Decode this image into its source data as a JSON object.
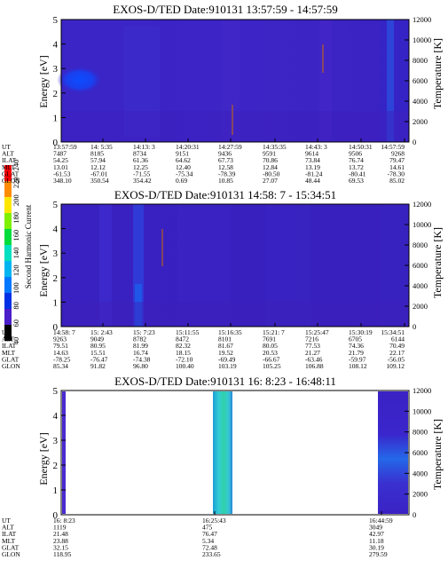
{
  "chart_data": [
    {
      "type": "heatmap",
      "title": "EXOS-D/TED   Date:910131  13:57:59 - 14:57:59",
      "ylabel": "Energy [eV]",
      "ylabel_right": "Temperature [K]",
      "ylim": [
        0,
        5
      ],
      "yticks": [
        "0",
        "1",
        "2",
        "3",
        "4",
        "5"
      ],
      "ylim_right": [
        0,
        12000
      ],
      "yticks_right": [
        "0",
        "2000",
        "4000",
        "6000",
        "8000",
        "10000",
        "12000"
      ],
      "ephemeris_labels": [
        "UT",
        "ALT",
        "ILAT",
        "MLT",
        "GLAT",
        "GLON"
      ],
      "ephemeris": [
        [
          "13:57:59",
          "7487",
          "54.25",
          "13.01",
          "-61.53",
          "348.10"
        ],
        [
          "14: 5:35",
          "8185",
          "57.94",
          "12.12",
          "-67.01",
          "350.54"
        ],
        [
          "14:13: 3",
          "8734",
          "61.36",
          "12.25",
          "-71.55",
          "354.42"
        ],
        [
          "14:20:31",
          "9151",
          "64.62",
          "12.40",
          "-75.34",
          "0.69"
        ],
        [
          "14:27:59",
          "9436",
          "67.73",
          "12.58",
          "-78.39",
          "10.85"
        ],
        [
          "14:35:35",
          "9591",
          "70.86",
          "12.84",
          "-80.50",
          "27.07"
        ],
        [
          "14:43: 3",
          "9614",
          "73.84",
          "13.19",
          "-81.24",
          "48.44"
        ],
        [
          "14:50:31",
          "9506",
          "76.74",
          "13.72",
          "-80.41",
          "69.53"
        ],
        [
          "14:57:59",
          "9268",
          "79.47",
          "14.61",
          "-78.30",
          "85.02"
        ]
      ]
    },
    {
      "type": "heatmap",
      "title": "EXOS-D/TED   Date:910131  14:58: 7 - 15:34:51",
      "ylabel": "Energy [eV]",
      "ylabel_right": "Temperature [K]",
      "ylim": [
        0,
        5
      ],
      "yticks": [
        "0",
        "1",
        "2",
        "3",
        "4",
        "5"
      ],
      "ylim_right": [
        0,
        12000
      ],
      "yticks_right": [
        "0",
        "2000",
        "4000",
        "6000",
        "8000",
        "10000",
        "12000"
      ],
      "colorbar": {
        "label": "Second Harmonic Current",
        "ticks": [
          "40",
          "60",
          "80",
          "100",
          "120",
          "140",
          "160",
          "180",
          "200",
          "220",
          "240"
        ]
      },
      "ephemeris_labels": [
        "UT",
        "ALT",
        "ILAT",
        "MLT",
        "GLAT",
        "GLON"
      ],
      "ephemeris": [
        [
          "14:58: 7",
          "9263",
          "79.51",
          "14.63",
          "-78.25",
          "85.34"
        ],
        [
          "15: 2:43",
          "9049",
          "80.95",
          "15.51",
          "-76.47",
          "91.82"
        ],
        [
          "15: 7:23",
          "8782",
          "81.99",
          "16.74",
          "-74.38",
          "96.80"
        ],
        [
          "15:11:55",
          "8472",
          "82.32",
          "18.15",
          "-72.10",
          "100.40"
        ],
        [
          "15:16:35",
          "8101",
          "81.67",
          "19.52",
          "-69.49",
          "103.19"
        ],
        [
          "15:21: 7",
          "7691",
          "80.05",
          "20.53",
          "-66.67",
          "105.25"
        ],
        [
          "15:25:47",
          "7216",
          "77.53",
          "21.27",
          "-63.46",
          "106.88"
        ],
        [
          "15:30:19",
          "6705",
          "74.36",
          "21.79",
          "-59.97",
          "108.12"
        ],
        [
          "15:34:51",
          "6144",
          "70.49",
          "22.17",
          "-56.05",
          "109.12"
        ]
      ]
    },
    {
      "type": "heatmap",
      "title": "EXOS-D/TED   Date:910131  16: 8:23 - 16:48:11",
      "ylabel": "Energy [eV]",
      "ylabel_right": "Temperature [K]",
      "ylim": [
        0,
        5
      ],
      "yticks": [
        "0",
        "1",
        "2",
        "3",
        "4",
        "5"
      ],
      "ylim_right": [
        0,
        12000
      ],
      "yticks_right": [
        "0",
        "2000",
        "4000",
        "6000",
        "8000",
        "10000",
        "12000"
      ],
      "ephemeris_labels": [
        "UT",
        "ALT",
        "ILAT",
        "MLT",
        "GLAT",
        "GLON"
      ],
      "ephemeris": [
        [
          "16: 8:23",
          "1119",
          "21.48",
          "23.88",
          "32.15",
          "118.95"
        ],
        [
          "16:25:43",
          "475",
          "76.47",
          "5.34",
          "72.48",
          "233.65"
        ],
        [
          "16:44:59",
          "3049",
          "42.97",
          "11.18",
          "30.19",
          "279.59"
        ]
      ]
    }
  ]
}
